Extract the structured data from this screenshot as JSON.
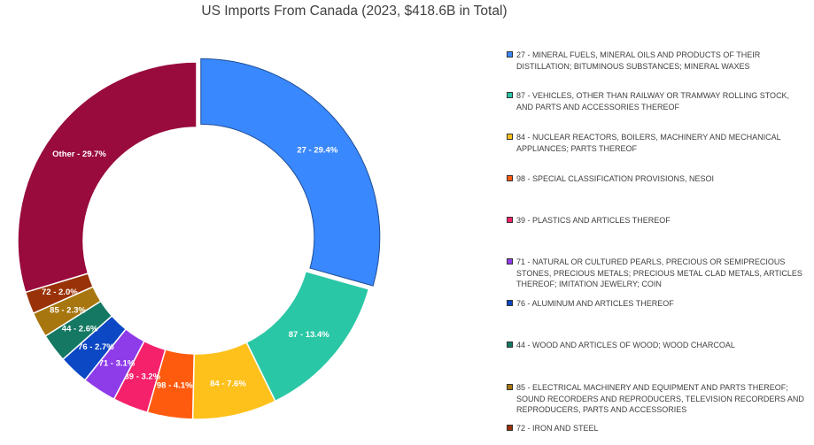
{
  "chart_data": {
    "type": "pie",
    "donut": true,
    "title": "US Imports From Canada (2023, $418.6B in Total)",
    "legend_position": "right",
    "slices": [
      {
        "code": "27",
        "label": "27 - 29.4%",
        "value": 29.4,
        "color": "#3A88FE",
        "legend": "27 - MINERAL FUELS, MINERAL OILS AND PRODUCTS OF THEIR DISTILLATION; BITUMINOUS SUBSTANCES; MINERAL WAXES"
      },
      {
        "code": "87",
        "label": "87 - 13.4%",
        "value": 13.4,
        "color": "#2AC7A6",
        "legend": "87 - VEHICLES, OTHER THAN RAILWAY OR TRAMWAY ROLLING STOCK, AND PARTS AND ACCESSORIES THEREOF"
      },
      {
        "code": "84",
        "label": "84 - 7.6%",
        "value": 7.6,
        "color": "#FEC11B",
        "legend": "84 - NUCLEAR REACTORS, BOILERS, MACHINERY AND MECHANICAL APPLIANCES; PARTS THEREOF"
      },
      {
        "code": "98",
        "label": "98 - 4.1%",
        "value": 4.1,
        "color": "#FF5B0F",
        "legend": "98 - SPECIAL CLASSIFICATION PROVISIONS, NESOI"
      },
      {
        "code": "39",
        "label": "39 - 3.2%",
        "value": 3.2,
        "color": "#F5216B",
        "legend": "39 - PLASTICS AND ARTICLES THEREOF"
      },
      {
        "code": "71",
        "label": "71 - 3.1%",
        "value": 3.1,
        "color": "#8E3BEA",
        "legend": "71 - NATURAL OR CULTURED PEARLS, PRECIOUS OR SEMIPRECIOUS STONES, PRECIOUS METALS; PRECIOUS METAL CLAD METALS, ARTICLES THEREOF; IMITATION JEWELRY; COIN"
      },
      {
        "code": "76",
        "label": "76 - 2.7%",
        "value": 2.7,
        "color": "#0C47C4",
        "legend": "76 - ALUMINUM AND ARTICLES THEREOF"
      },
      {
        "code": "44",
        "label": "44 - 2.6%",
        "value": 2.6,
        "color": "#147863",
        "legend": "44 - WOOD AND ARTICLES OF WOOD; WOOD CHARCOAL"
      },
      {
        "code": "85",
        "label": "85 - 2.3%",
        "value": 2.3,
        "color": "#A8760E",
        "legend": "85 - ELECTRICAL MACHINERY AND EQUIPMENT AND PARTS THEREOF; SOUND RECORDERS AND REPRODUCERS, TELEVISION RECORDERS AND REPRODUCERS, PARTS AND ACCESSORIES"
      },
      {
        "code": "72",
        "label": "72 - 2.0%",
        "value": 2.0,
        "color": "#9A3209",
        "legend": "72 - IRON AND STEEL"
      },
      {
        "code": "Other",
        "label": "Other - 29.7%",
        "value": 29.7,
        "color": "#990A3D",
        "legend": ""
      }
    ]
  }
}
